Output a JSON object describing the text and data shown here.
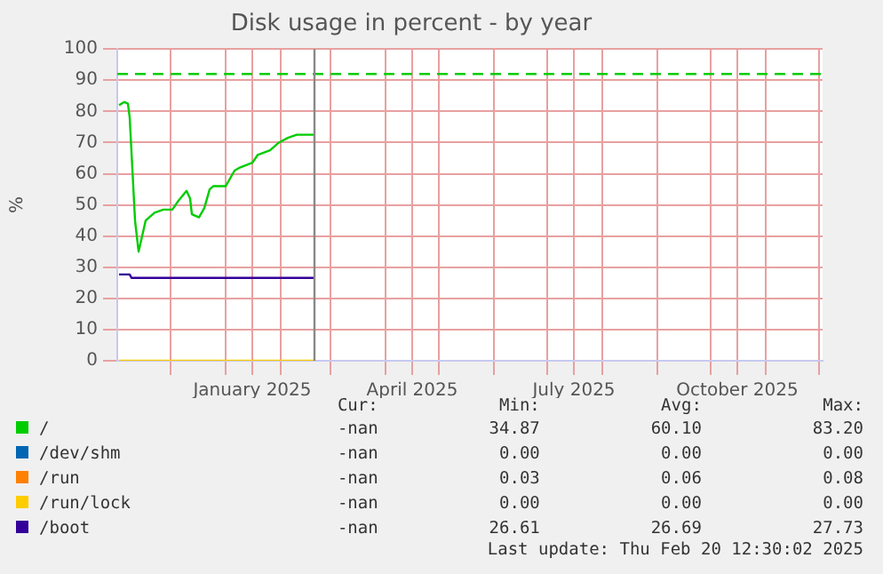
{
  "chart_data": {
    "type": "line",
    "title": "Disk usage in percent - by year",
    "ylabel": "%",
    "xlim": [
      "2024-11-01",
      "2025-12-03"
    ],
    "xticks": [
      {
        "value": "2024-12-01",
        "label": null
      },
      {
        "value": "2025-01-01",
        "label": null
      },
      {
        "value": "2025-01-16",
        "label": "January 2025"
      },
      {
        "value": "2025-02-01",
        "label": null
      },
      {
        "value": "2025-03-01",
        "label": null
      },
      {
        "value": "2025-04-01",
        "label": null
      },
      {
        "value": "2025-04-16",
        "label": "April 2025"
      },
      {
        "value": "2025-05-01",
        "label": null
      },
      {
        "value": "2025-06-01",
        "label": null
      },
      {
        "value": "2025-07-01",
        "label": null
      },
      {
        "value": "2025-07-16",
        "label": "July 2025"
      },
      {
        "value": "2025-08-01",
        "label": null
      },
      {
        "value": "2025-09-01",
        "label": null
      },
      {
        "value": "2025-10-01",
        "label": null
      },
      {
        "value": "2025-10-16",
        "label": "October 2025"
      },
      {
        "value": "2025-11-01",
        "label": null
      },
      {
        "value": "2025-12-01",
        "label": null
      }
    ],
    "ylim": [
      0,
      100
    ],
    "yticks": [
      0,
      10,
      20,
      30,
      40,
      50,
      60,
      70,
      80,
      90,
      100
    ],
    "grid": true,
    "legend": "bottom",
    "marker": "none",
    "line_style": "solid",
    "series": [
      {
        "name": "/",
        "color": "#00cc00",
        "x": [
          "2024-11-02",
          "2024-11-05",
          "2024-11-07",
          "2024-11-08",
          "2024-11-11",
          "2024-11-13",
          "2024-11-15",
          "2024-11-17",
          "2024-11-22",
          "2024-11-27",
          "2024-12-02",
          "2024-12-05",
          "2024-12-10",
          "2024-12-12",
          "2024-12-13",
          "2024-12-17",
          "2024-12-20",
          "2024-12-23",
          "2024-12-25",
          "2025-01-01",
          "2025-01-06",
          "2025-01-09",
          "2025-01-16",
          "2025-01-19",
          "2025-01-26",
          "2025-01-31",
          "2025-02-05",
          "2025-02-10",
          "2025-02-20"
        ],
        "values": [
          82,
          83,
          82.5,
          78,
          45,
          35,
          40,
          45,
          47.5,
          48.5,
          48.5,
          51,
          54.5,
          52,
          47,
          46,
          49,
          55,
          56,
          56,
          61,
          62,
          63.5,
          66,
          67.5,
          70,
          71.5,
          72.5,
          72.5
        ]
      },
      {
        "name": "/dev/shm",
        "color": "#0066b3"
      },
      {
        "name": "/run",
        "color": "#ff8000"
      },
      {
        "name": "/run/lock",
        "color": "#ffcc00",
        "x": [
          "2024-11-02",
          "2025-02-20"
        ],
        "values": [
          0,
          0
        ]
      },
      {
        "name": "/boot",
        "color": "#330099",
        "x": [
          "2024-11-02",
          "2024-11-08",
          "2024-11-09",
          "2025-02-20"
        ],
        "values": [
          27.7,
          27.7,
          26.6,
          26.6
        ]
      }
    ],
    "ref_lines": [
      {
        "axis": "y",
        "value": 92,
        "color": "#00cc00",
        "line_style": "dashed"
      },
      {
        "axis": "x",
        "value": "2025-02-20",
        "color": "#888888",
        "line_style": "solid"
      }
    ],
    "annotations": [
      "Cur:",
      "Min:",
      "Avg:",
      "Max:",
      "-nan",
      "34.87",
      "60.10",
      "83.20",
      "-nan",
      "0.00",
      "0.00",
      "0.00",
      "-nan",
      "0.03",
      "0.06",
      "0.08",
      "-nan",
      "0.00",
      "0.00",
      "0.00",
      "-nan",
      "26.61",
      "26.69",
      "27.73",
      "Last update: Thu Feb 20 12:30:02 2025"
    ]
  }
}
